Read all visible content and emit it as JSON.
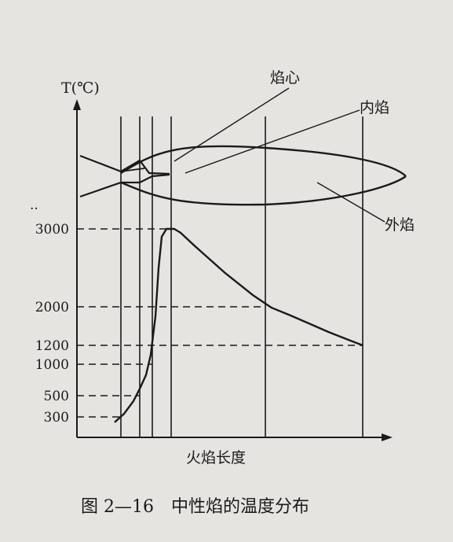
{
  "chart_data": {
    "type": "line",
    "title": "",
    "caption": "图 2—16　中性焰的温度分布",
    "xlabel": "火焰长度",
    "ylabel": "T(℃)",
    "yticks": [
      "3000",
      "2000",
      "1200",
      "1000",
      "500",
      "300"
    ],
    "ytick_values": [
      3000,
      2000,
      1200,
      1000,
      500,
      300
    ],
    "ellipsis": "..",
    "flame_zones": [
      "焰心",
      "内焰",
      "外焰"
    ],
    "series": [
      {
        "x": [
          0.12,
          0.15,
          0.18,
          0.2,
          0.22,
          0.235,
          0.25,
          0.26,
          0.27,
          0.285,
          0.31,
          0.33,
          0.37,
          0.42,
          0.47,
          0.52,
          0.56,
          0.62,
          0.68,
          0.74,
          0.8,
          0.87,
          0.91
        ],
        "y": [
          250,
          330,
          450,
          610,
          830,
          1100,
          1800,
          2500,
          2900,
          3000,
          3000,
          2950,
          2800,
          2620,
          2440,
          2280,
          2150,
          1980,
          1820,
          1650,
          1480,
          1300,
          1200
        ]
      }
    ],
    "temperature_markers": [
      {
        "value": 3000,
        "x": 0.3
      },
      {
        "value": 2000,
        "x": 0.6
      },
      {
        "value": 1200,
        "x": 0.91
      },
      {
        "value": 1000,
        "x": 0.24
      },
      {
        "value": 500,
        "x": 0.2
      },
      {
        "value": 300,
        "x": 0.14
      }
    ],
    "zone_boundaries_x": [
      0.14,
      0.2,
      0.24,
      0.3,
      0.6,
      0.91
    ],
    "colors": {
      "background": "#e6e4e0",
      "ink": "#1a1a1a"
    }
  }
}
